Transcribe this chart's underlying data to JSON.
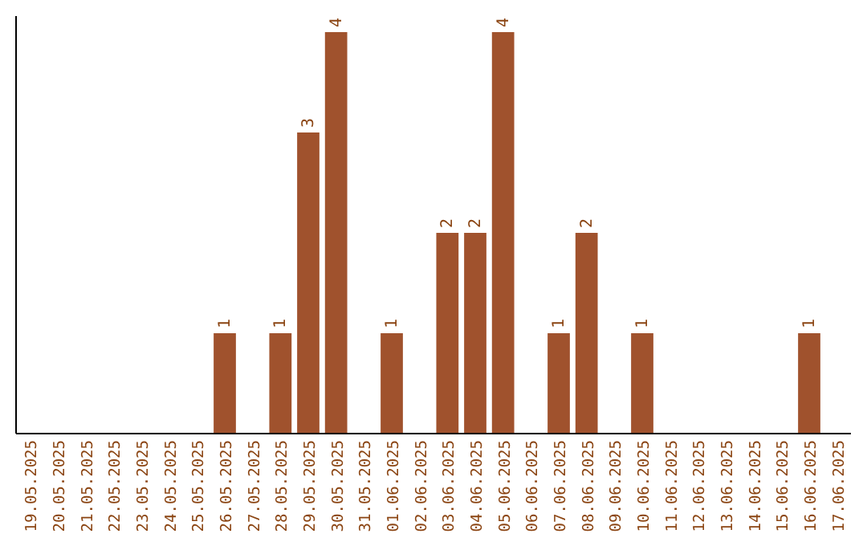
{
  "chart_data": {
    "type": "bar",
    "categories": [
      "19.05.2025",
      "20.05.2025",
      "21.05.2025",
      "22.05.2025",
      "23.05.2025",
      "24.05.2025",
      "25.05.2025",
      "26.05.2025",
      "27.05.2025",
      "28.05.2025",
      "29.05.2025",
      "30.05.2025",
      "31.05.2025",
      "01.06.2025",
      "02.06.2025",
      "03.06.2025",
      "04.06.2025",
      "05.06.2025",
      "06.06.2025",
      "07.06.2025",
      "08.06.2025",
      "09.06.2025",
      "10.06.2025",
      "11.06.2025",
      "12.06.2025",
      "13.06.2025",
      "14.06.2025",
      "15.06.2025",
      "16.06.2025",
      "17.06.2025"
    ],
    "values": [
      0,
      0,
      0,
      0,
      0,
      0,
      0,
      1,
      0,
      1,
      3,
      4,
      0,
      1,
      0,
      2,
      2,
      4,
      0,
      1,
      2,
      0,
      1,
      0,
      0,
      0,
      0,
      0,
      1,
      0
    ],
    "value_labels": [
      null,
      null,
      null,
      null,
      null,
      null,
      null,
      "1",
      null,
      "1",
      "3",
      "4",
      null,
      "1",
      null,
      "2",
      "2",
      "4",
      null,
      "1",
      "2",
      null,
      "1",
      null,
      null,
      null,
      null,
      null,
      "1",
      null
    ],
    "color": "#a0522d",
    "ylim": [
      0,
      4
    ],
    "tick_labels": "x"
  }
}
